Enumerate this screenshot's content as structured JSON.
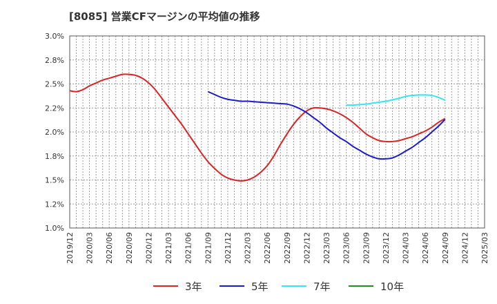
{
  "title": "[8085]  営業CFマージンの平均値の推移",
  "chart_data": {
    "type": "line",
    "title": "[8085]  営業CFマージンの平均値の推移",
    "xlabel": "",
    "ylabel": "",
    "ylim": [
      1.0,
      3.0
    ],
    "y_ticks": [
      "1.0%",
      "1.2%",
      "1.5%",
      "1.8%",
      "2.0%",
      "2.2%",
      "2.5%",
      "2.8%",
      "3.0%"
    ],
    "y_tick_values": [
      1.0,
      1.25,
      1.5,
      1.75,
      2.0,
      2.25,
      2.5,
      2.75,
      3.0
    ],
    "x_ticks": [
      "2019/12",
      "2020/03",
      "2020/06",
      "2020/09",
      "2020/12",
      "2021/03",
      "2021/06",
      "2021/09",
      "2021/12",
      "2022/03",
      "2022/06",
      "2022/09",
      "2022/12",
      "2023/03",
      "2023/06",
      "2023/09",
      "2023/12",
      "2024/03",
      "2024/06",
      "2024/09",
      "2024/12",
      "2025/03"
    ],
    "grid": true,
    "legend_position": "bottom",
    "series": [
      {
        "name": "3年",
        "color": "#dd2222",
        "x": [
          "2019/12",
          "2020/01",
          "2020/02",
          "2020/03",
          "2020/04",
          "2020/05",
          "2020/06",
          "2020/07",
          "2020/08",
          "2020/09",
          "2020/10",
          "2020/11",
          "2020/12",
          "2021/01",
          "2021/02",
          "2021/03",
          "2021/04",
          "2021/05",
          "2021/06",
          "2021/07",
          "2021/08",
          "2021/09",
          "2021/10",
          "2021/11",
          "2021/12",
          "2022/01",
          "2022/02",
          "2022/03",
          "2022/04",
          "2022/05",
          "2022/06",
          "2022/07",
          "2022/08",
          "2022/09",
          "2022/10",
          "2022/11",
          "2022/12",
          "2023/01",
          "2023/02",
          "2023/03",
          "2023/04",
          "2023/05",
          "2023/06",
          "2023/07",
          "2023/08",
          "2023/09",
          "2023/10",
          "2023/11",
          "2023/12",
          "2024/01",
          "2024/02",
          "2024/03",
          "2024/04",
          "2024/05",
          "2024/06",
          "2024/07",
          "2024/08",
          "2024/09"
        ],
        "values": [
          2.43,
          2.42,
          2.44,
          2.48,
          2.51,
          2.54,
          2.56,
          2.58,
          2.6,
          2.6,
          2.59,
          2.56,
          2.51,
          2.44,
          2.35,
          2.26,
          2.17,
          2.08,
          1.98,
          1.88,
          1.78,
          1.69,
          1.62,
          1.56,
          1.52,
          1.5,
          1.49,
          1.5,
          1.53,
          1.58,
          1.65,
          1.75,
          1.87,
          1.98,
          2.08,
          2.16,
          2.22,
          2.25,
          2.25,
          2.24,
          2.22,
          2.19,
          2.15,
          2.1,
          2.04,
          1.98,
          1.94,
          1.91,
          1.9,
          1.9,
          1.91,
          1.93,
          1.95,
          1.98,
          2.01,
          2.05,
          2.1,
          2.14
        ]
      },
      {
        "name": "5年",
        "color": "#1a1acc",
        "x": [
          "2021/09",
          "2021/10",
          "2021/11",
          "2021/12",
          "2022/01",
          "2022/02",
          "2022/03",
          "2022/04",
          "2022/05",
          "2022/06",
          "2022/07",
          "2022/08",
          "2022/09",
          "2022/10",
          "2022/11",
          "2022/12",
          "2023/01",
          "2023/02",
          "2023/03",
          "2023/04",
          "2023/05",
          "2023/06",
          "2023/07",
          "2023/08",
          "2023/09",
          "2023/10",
          "2023/11",
          "2023/12",
          "2024/01",
          "2024/02",
          "2024/03",
          "2024/04",
          "2024/05",
          "2024/06",
          "2024/07",
          "2024/08",
          "2024/09"
        ],
        "values": [
          2.42,
          2.39,
          2.36,
          2.34,
          2.33,
          2.32,
          2.32,
          2.315,
          2.31,
          2.305,
          2.3,
          2.295,
          2.29,
          2.27,
          2.24,
          2.2,
          2.15,
          2.1,
          2.04,
          1.99,
          1.94,
          1.9,
          1.85,
          1.81,
          1.77,
          1.74,
          1.72,
          1.72,
          1.73,
          1.76,
          1.8,
          1.84,
          1.89,
          1.94,
          2.0,
          2.06,
          2.13
        ]
      },
      {
        "name": "7年",
        "color": "#33e5ee",
        "x": [
          "2023/06",
          "2023/07",
          "2023/08",
          "2023/09",
          "2023/10",
          "2023/11",
          "2023/12",
          "2024/01",
          "2024/02",
          "2024/03",
          "2024/04",
          "2024/05",
          "2024/06",
          "2024/07",
          "2024/08",
          "2024/09"
        ],
        "values": [
          2.28,
          2.28,
          2.285,
          2.29,
          2.3,
          2.31,
          2.32,
          2.335,
          2.35,
          2.37,
          2.38,
          2.385,
          2.385,
          2.38,
          2.36,
          2.33
        ]
      },
      {
        "name": "10年",
        "color": "#228b22",
        "x": [],
        "values": []
      }
    ]
  }
}
